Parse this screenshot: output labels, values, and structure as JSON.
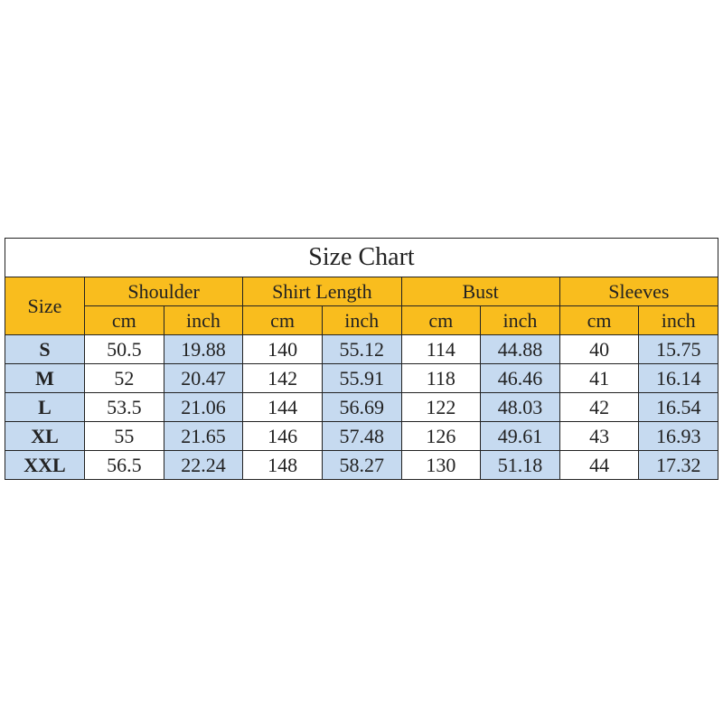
{
  "title": "Size Chart",
  "header": {
    "size": "Size",
    "groups": [
      "Shoulder",
      "Shirt Length",
      "Bust",
      "Sleeves"
    ],
    "units": [
      "cm",
      "inch",
      "cm",
      "inch",
      "cm",
      "inch",
      "cm",
      "inch"
    ]
  },
  "table": {
    "rows": [
      [
        "S",
        "50.5",
        "19.88",
        "140",
        "55.12",
        "114",
        "44.88",
        "40",
        "15.75"
      ],
      [
        "M",
        "52",
        "20.47",
        "142",
        "55.91",
        "118",
        "46.46",
        "41",
        "16.14"
      ],
      [
        "L",
        "53.5",
        "21.06",
        "144",
        "56.69",
        "122",
        "48.03",
        "42",
        "16.54"
      ],
      [
        "XL",
        "55",
        "21.65",
        "146",
        "57.48",
        "126",
        "49.61",
        "43",
        "16.93"
      ],
      [
        "XXL",
        "56.5",
        "22.24",
        "148",
        "58.27",
        "130",
        "51.18",
        "44",
        "17.32"
      ]
    ]
  }
}
